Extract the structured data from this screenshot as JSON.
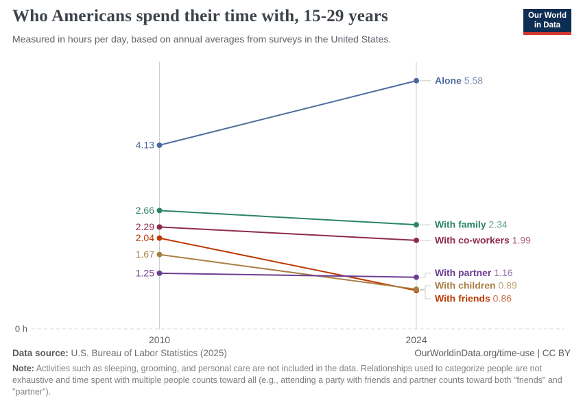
{
  "header": {
    "title": "Who Americans spend their time with, 15-29 years",
    "subtitle": "Measured in hours per day, based on annual averages from surveys in the United States.",
    "logo_line1": "Our World",
    "logo_line2": "in Data"
  },
  "chart_data": {
    "type": "line",
    "subtype": "slope",
    "title": "Who Americans spend their time with, 15-29 years",
    "unit": "hours per day",
    "x": [
      2010,
      2024
    ],
    "x_ticks": [
      "2010",
      "2024"
    ],
    "zero_label": "0 h",
    "ylim": [
      0,
      6
    ],
    "grid": "zero-line-only",
    "legend_position": "right-inline",
    "series": [
      {
        "name": "Alone",
        "values": [
          4.13,
          5.58
        ],
        "color": "#4C6A9C",
        "label_offset": 0
      },
      {
        "name": "With family",
        "values": [
          2.66,
          2.34
        ],
        "color": "#2C8465",
        "label_offset": 0
      },
      {
        "name": "With co-workers",
        "values": [
          2.29,
          1.99
        ],
        "color": "#8F2A52",
        "label_offset": 0
      },
      {
        "name": "With friends",
        "values": [
          2.04,
          0.86
        ],
        "color": "#BC3A02",
        "label_offset": 12
      },
      {
        "name": "With children",
        "values": [
          1.67,
          0.89
        ],
        "color": "#A97E45",
        "label_offset": -5
      },
      {
        "name": "With partner",
        "values": [
          1.25,
          1.16
        ],
        "color": "#6D3E91",
        "label_offset": -6
      }
    ]
  },
  "colors": {
    "axis": "#cfcfcf",
    "zero_line": "#ececec",
    "connector": "#c8c8c8",
    "logo_bg": "#0d2d52",
    "logo_stripe": "#d7382e",
    "title_text": "#3c4349"
  },
  "footer": {
    "source_label": "Data source:",
    "source_value": " U.S. Bureau of Labor Statistics (2025)",
    "link_text": "OurWorldinData.org/time-use | CC BY",
    "note_label": "Note:",
    "note_text": " Activities such as sleeping, grooming, and personal care are not included in the data. Relationships used to categorize people are not exhaustive and time spent with multiple people counts toward all (e.g., attending a party with friends and partner counts toward both \"friends\" and \"partner\")."
  }
}
